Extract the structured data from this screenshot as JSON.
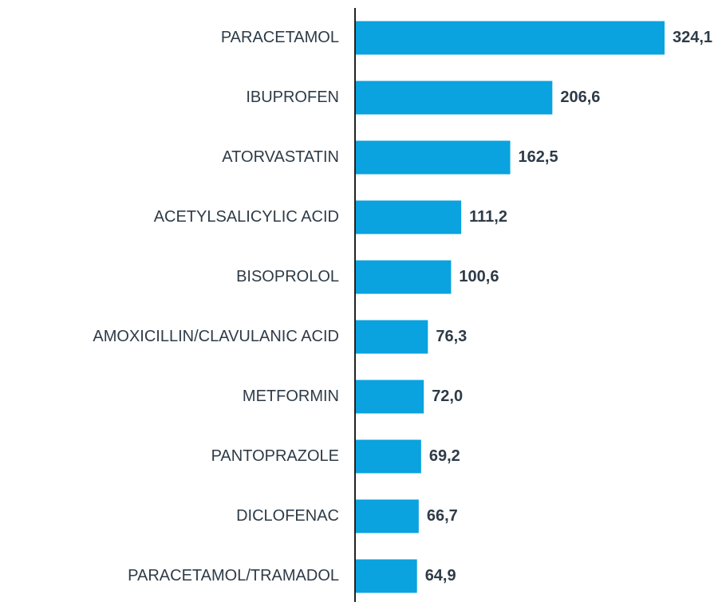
{
  "chart_data": {
    "type": "bar",
    "orientation": "horizontal",
    "categories": [
      "PARACETAMOL",
      "IBUPROFEN",
      "ATORVASTATIN",
      "ACETYLSALICYLIC ACID",
      "BISOPROLOL",
      "AMOXICILLIN/CLAVULANIC ACID",
      "METFORMIN",
      "PANTOPRAZOLE",
      "DICLOFENAC",
      "PARACETAMOL/TRAMADOL"
    ],
    "values": [
      324.1,
      206.6,
      162.5,
      111.2,
      100.6,
      76.3,
      72.0,
      69.2,
      66.7,
      64.9
    ],
    "value_labels": [
      "324,1",
      "206,6",
      "162,5",
      "111,2",
      "100,6",
      "76,3",
      "72,0",
      "69,2",
      "66,7",
      "64,9"
    ],
    "color": "#0aa2df"
  }
}
